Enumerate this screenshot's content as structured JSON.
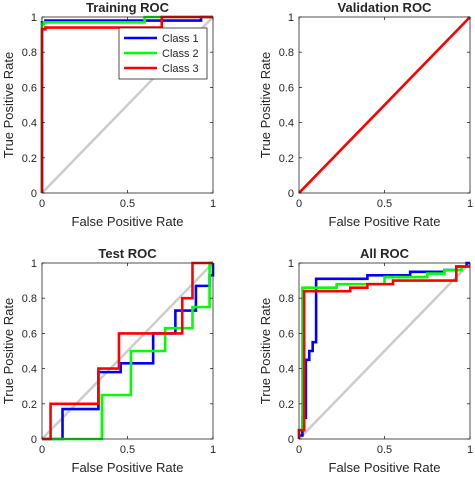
{
  "colors": {
    "class1": "#0000ff",
    "class2": "#00ff00",
    "class3": "#ff0000",
    "diagonal": "#cccccc",
    "axis": "#262626"
  },
  "chart_data": [
    {
      "type": "line",
      "title": "Training ROC",
      "xlabel": "False Positive Rate",
      "ylabel": "True Positive Rate",
      "xlim": [
        0,
        1
      ],
      "ylim": [
        0,
        1
      ],
      "xticks": [
        "0",
        "0.5",
        "1"
      ],
      "yticks": [
        "0",
        "0.2",
        "0.4",
        "0.6",
        "0.8",
        "1"
      ],
      "grid": false,
      "legend": "top-right",
      "diagonal": true,
      "series": [
        {
          "name": "Class 1",
          "color": "#0000ff",
          "x": [
            0,
            0,
            0,
            0.02,
            0.02,
            0.93,
            0.93,
            1
          ],
          "y": [
            0,
            0.12,
            0.97,
            0.97,
            0.98,
            0.98,
            1,
            1
          ]
        },
        {
          "name": "Class 2",
          "color": "#00ff00",
          "x": [
            0,
            0,
            0.01,
            0.01,
            0.6,
            0.6,
            1
          ],
          "y": [
            0,
            0.96,
            0.96,
            0.97,
            0.97,
            1,
            1
          ]
        },
        {
          "name": "Class 3",
          "color": "#ff0000",
          "x": [
            0,
            0,
            0.02,
            0.02,
            0.7,
            0.7,
            1
          ],
          "y": [
            0,
            0.93,
            0.93,
            0.94,
            0.94,
            1,
            1
          ]
        }
      ]
    },
    {
      "type": "line",
      "title": "Validation ROC",
      "xlabel": "False Positive Rate",
      "ylabel": "True Positive Rate",
      "xlim": [
        0,
        1
      ],
      "ylim": [
        0,
        1
      ],
      "xticks": [
        "0",
        "0.5",
        "1"
      ],
      "yticks": [
        "0",
        "0.2",
        "0.4",
        "0.6",
        "0.8",
        "1"
      ],
      "grid": false,
      "diagonal": true,
      "series": [
        {
          "name": "Class 3",
          "color": "#ff0000",
          "x": [
            0,
            1
          ],
          "y": [
            0,
            1
          ]
        }
      ]
    },
    {
      "type": "line",
      "title": "Test ROC",
      "xlabel": "False Positive Rate",
      "ylabel": "True Positive Rate",
      "xlim": [
        0,
        1
      ],
      "ylim": [
        0,
        1
      ],
      "xticks": [
        "0",
        "0.5",
        "1"
      ],
      "yticks": [
        "0",
        "0.2",
        "0.4",
        "0.6",
        "0.8",
        "1"
      ],
      "grid": false,
      "diagonal": true,
      "series": [
        {
          "name": "Class 1",
          "color": "#0000ff",
          "x": [
            0,
            0.12,
            0.12,
            0.33,
            0.33,
            0.46,
            0.46,
            0.65,
            0.65,
            0.78,
            0.78,
            0.9,
            0.9,
            0.98,
            0.98,
            1,
            1
          ],
          "y": [
            0,
            0,
            0.17,
            0.17,
            0.38,
            0.38,
            0.43,
            0.43,
            0.6,
            0.6,
            0.73,
            0.73,
            0.87,
            0.87,
            0.93,
            0.93,
            1
          ]
        },
        {
          "name": "Class 2",
          "color": "#00ff00",
          "x": [
            0,
            0.35,
            0.35,
            0.52,
            0.52,
            0.72,
            0.72,
            0.88,
            0.88,
            0.98,
            0.98,
            1
          ],
          "y": [
            0,
            0,
            0.25,
            0.25,
            0.5,
            0.5,
            0.63,
            0.63,
            0.75,
            0.75,
            1,
            1
          ]
        },
        {
          "name": "Class 3",
          "color": "#ff0000",
          "x": [
            0,
            0.05,
            0.05,
            0.33,
            0.33,
            0.45,
            0.45,
            0.82,
            0.82,
            0.88,
            0.88,
            1
          ],
          "y": [
            0,
            0,
            0.2,
            0.2,
            0.4,
            0.4,
            0.6,
            0.6,
            0.8,
            0.8,
            1,
            1
          ]
        }
      ]
    },
    {
      "type": "line",
      "title": "All ROC",
      "xlabel": "False Positive Rate",
      "ylabel": "True Positive Rate",
      "xlim": [
        0,
        1
      ],
      "ylim": [
        0,
        1
      ],
      "xticks": [
        "0",
        "0.5",
        "1"
      ],
      "yticks": [
        "0",
        "0.2",
        "0.4",
        "0.6",
        "0.8",
        "1"
      ],
      "grid": false,
      "diagonal": true,
      "series": [
        {
          "name": "Class 1",
          "color": "#0000ff",
          "x": [
            0,
            0,
            0.02,
            0.02,
            0.04,
            0.04,
            0.06,
            0.06,
            0.08,
            0.08,
            0.1,
            0.1,
            0.4,
            0.4,
            0.65,
            0.65,
            0.85,
            0.85,
            0.92,
            0.92,
            0.98,
            0.98,
            1
          ],
          "y": [
            0,
            0.02,
            0.02,
            0.12,
            0.12,
            0.45,
            0.45,
            0.5,
            0.5,
            0.55,
            0.55,
            0.91,
            0.91,
            0.93,
            0.93,
            0.95,
            0.95,
            0.96,
            0.96,
            0.98,
            0.98,
            1,
            1
          ]
        },
        {
          "name": "Class 2",
          "color": "#00ff00",
          "x": [
            0,
            0,
            0.02,
            0.02,
            0.22,
            0.22,
            0.5,
            0.5,
            0.75,
            0.75,
            0.85,
            0.85,
            0.95,
            0.95,
            1
          ],
          "y": [
            0,
            0.05,
            0.05,
            0.86,
            0.86,
            0.88,
            0.88,
            0.92,
            0.92,
            0.94,
            0.94,
            0.96,
            0.96,
            0.98,
            0.98
          ]
        },
        {
          "name": "Class 3",
          "color": "#ff0000",
          "x": [
            0,
            0,
            0.03,
            0.03,
            0.3,
            0.3,
            0.4,
            0.4,
            0.55,
            0.55,
            0.92,
            0.92,
            1
          ],
          "y": [
            0,
            0.05,
            0.05,
            0.84,
            0.84,
            0.86,
            0.86,
            0.88,
            0.88,
            0.9,
            0.9,
            0.98,
            0.98
          ]
        }
      ]
    }
  ]
}
